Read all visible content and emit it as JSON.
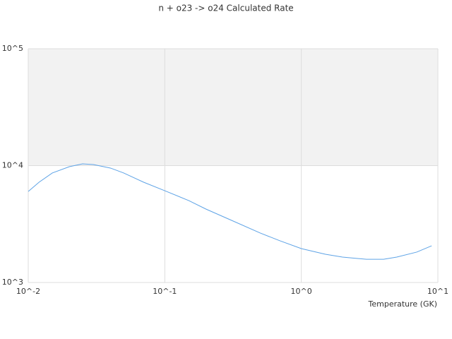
{
  "chart_data": {
    "type": "line",
    "title": "n + o23 -> o24 Calculated Rate",
    "x_label": "Temperature (GK)",
    "x": [
      0.01,
      0.012,
      0.015,
      0.02,
      0.025,
      0.03,
      0.04,
      0.05,
      0.07,
      0.1,
      0.15,
      0.2,
      0.3,
      0.5,
      0.7,
      1,
      1.5,
      2,
      3,
      4,
      5,
      7,
      9
    ],
    "series": [
      {
        "color": "#5ea3e6",
        "values": [
          6010,
          7210,
          8650,
          9790,
          10350,
          10210,
          9530,
          8650,
          7210,
          6100,
          5020,
          4250,
          3450,
          2650,
          2270,
          1950,
          1745,
          1650,
          1580,
          1580,
          1650,
          1820,
          2060
        ]
      }
    ],
    "xlim": [
      0.01,
      10
    ],
    "ylim": [
      1000,
      100000
    ],
    "xscale": "log",
    "yscale": "log",
    "xticks": [
      {
        "value": 0.01,
        "label": "10^-2"
      },
      {
        "value": 0.1,
        "label": "10^-1"
      },
      {
        "value": 1,
        "label": "10^0"
      },
      {
        "value": 10,
        "label": "10^1"
      }
    ],
    "yticks": [
      {
        "value": 1000,
        "label": "10^3"
      },
      {
        "value": 10000,
        "label": "10^4"
      },
      {
        "value": 100000,
        "label": "10^5"
      }
    ],
    "grid": true,
    "band_color": "#f2f2f2"
  }
}
